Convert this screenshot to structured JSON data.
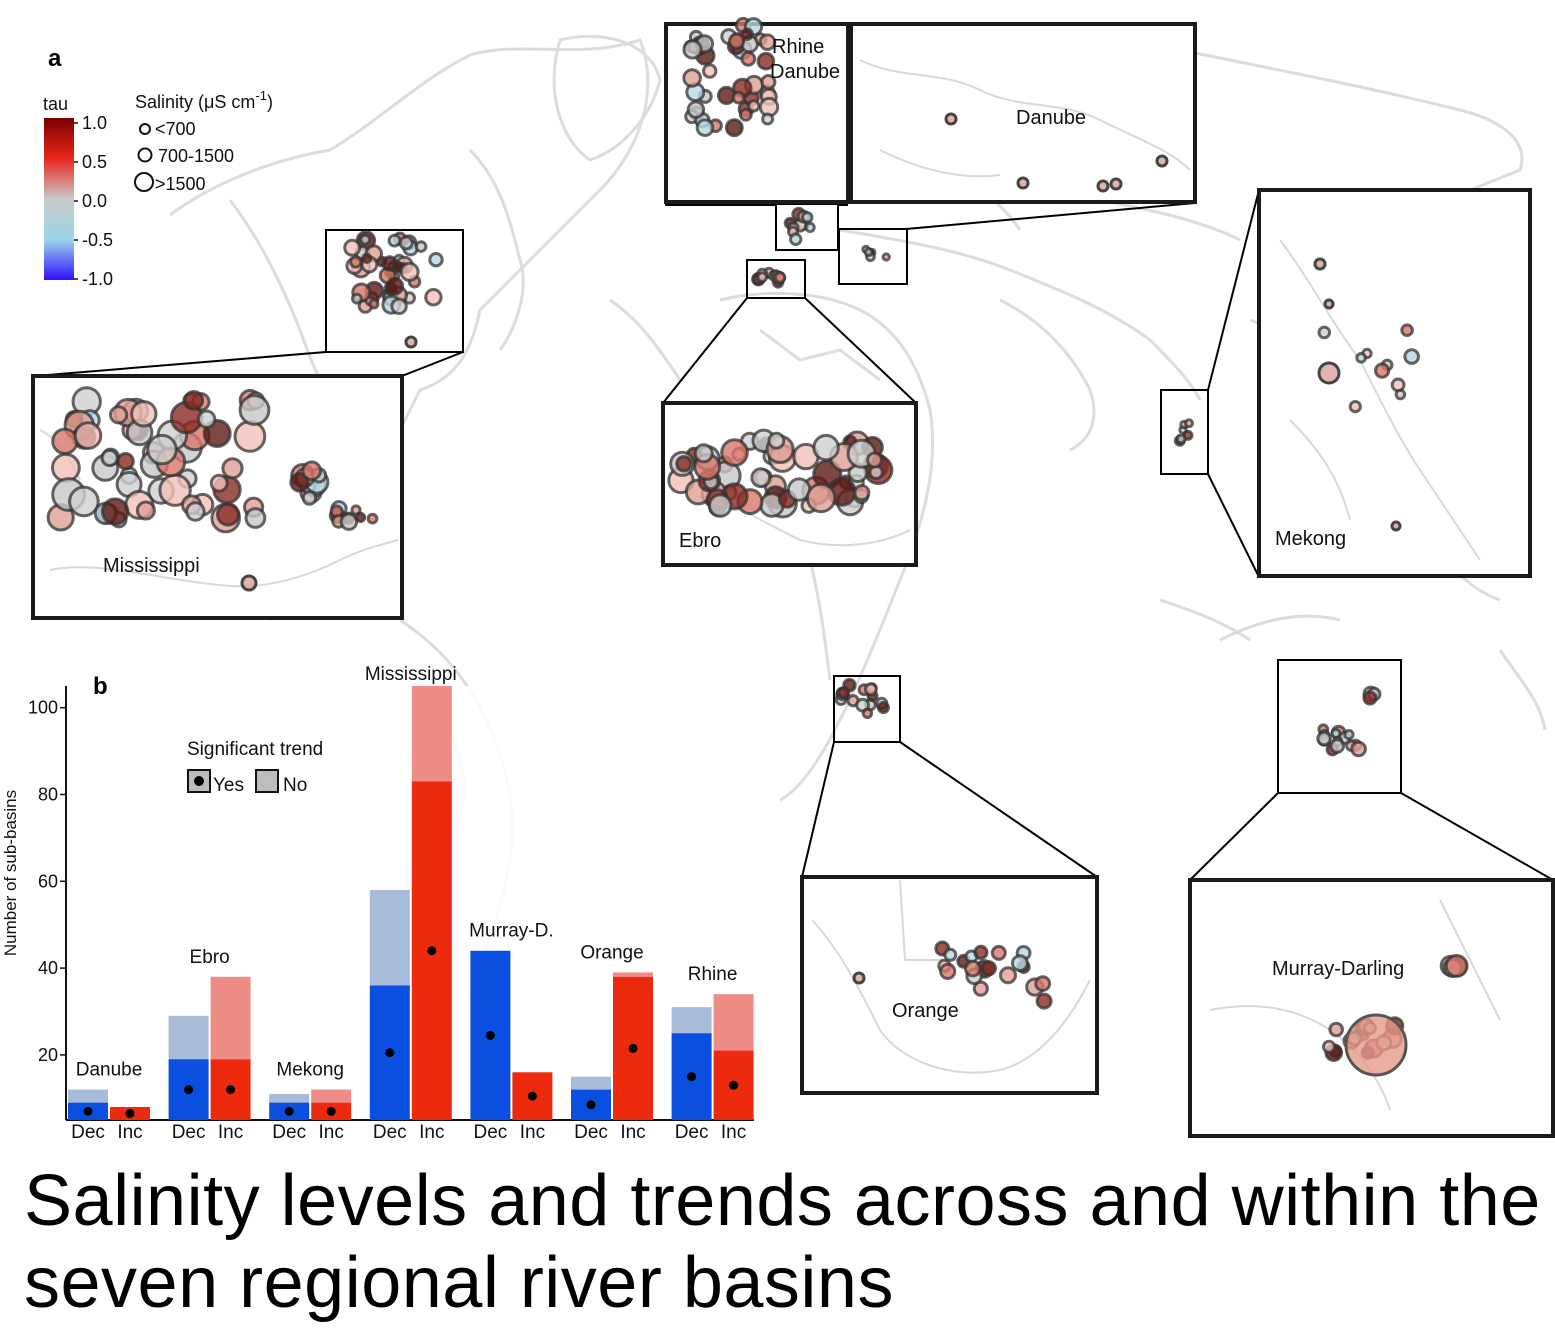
{
  "panel_a": {
    "label": "a",
    "tau_legend": {
      "title": "tau",
      "ticks": [
        "1.0",
        "0.5",
        "0.0",
        "-0.5",
        "-1.0"
      ],
      "colors": [
        "#7a0000",
        "#e8271a",
        "#c9c9c9",
        "#9bd6e8",
        "#3010ff"
      ]
    },
    "salinity_legend": {
      "title_main": "Salinity (μS cm",
      "title_sup": "-1",
      "title_end": ")",
      "classes": [
        "<700",
        "700-1500",
        ">1500"
      ]
    },
    "insets": {
      "mississippi": "Mississippi",
      "rhine": "Rhine",
      "danube_small": "Danube",
      "danube": "Danube",
      "ebro": "Ebro",
      "mekong": "Mekong",
      "orange": "Orange",
      "murray": "Murray-Darling"
    }
  },
  "panel_b": {
    "label": "b",
    "legend": {
      "title": "Significant trend",
      "yes": "Yes",
      "no": "No"
    }
  },
  "chart_data": {
    "type": "bar",
    "ylabel": "Number of sub-basins",
    "xlabel": "",
    "ylim": [
      5,
      105
    ],
    "yticks": [
      20,
      40,
      60,
      80,
      100
    ],
    "category_labels": [
      "Dec",
      "Inc"
    ],
    "basins": [
      {
        "name": "Danube",
        "dec": {
          "significant": 9,
          "total": 12
        },
        "inc": {
          "significant": 8,
          "total": 8
        }
      },
      {
        "name": "Ebro",
        "dec": {
          "significant": 19,
          "total": 29
        },
        "inc": {
          "significant": 19,
          "total": 38
        }
      },
      {
        "name": "Mekong",
        "dec": {
          "significant": 9,
          "total": 11
        },
        "inc": {
          "significant": 9,
          "total": 12
        }
      },
      {
        "name": "Mississippi",
        "dec": {
          "significant": 36,
          "total": 58
        },
        "inc": {
          "significant": 83,
          "total": 105
        }
      },
      {
        "name": "Murray-D.",
        "dec": {
          "significant": 44,
          "total": 44
        },
        "inc": {
          "significant": 16,
          "total": 16
        }
      },
      {
        "name": "Orange",
        "dec": {
          "significant": 12,
          "total": 15
        },
        "inc": {
          "significant": 38,
          "total": 39
        }
      },
      {
        "name": "Rhine",
        "dec": {
          "significant": 25,
          "total": 31
        },
        "inc": {
          "significant": 21,
          "total": 34
        }
      }
    ],
    "colors": {
      "dec": "#0a4fe0",
      "dec_light": "#a6bcd9",
      "inc": "#ec2a0e",
      "inc_light": "#ee8c86"
    }
  },
  "caption": "Salinity levels and trends across and within the seven regional river basins"
}
